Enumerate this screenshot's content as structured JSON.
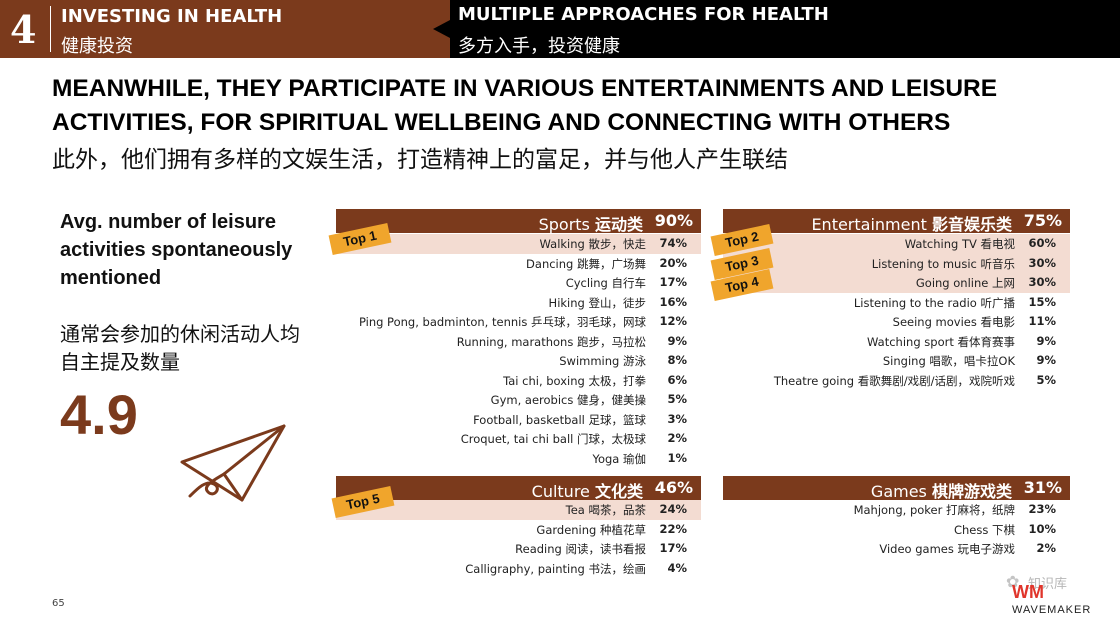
{
  "header": {
    "number": "4",
    "left_en": "INVESTING IN HEALTH",
    "left_cn": "健康投资",
    "right_en": "MULTIPLE APPROACHES FOR HEALTH",
    "right_cn": "多方入手，投资健康"
  },
  "title": {
    "en": "MEANWHILE, THEY PARTICIPATE IN VARIOUS ENTERTAINMENTS AND LEISURE ACTIVITIES, FOR SPIRITUAL WELLBEING AND CONNECTING WITH OTHERS",
    "cn": "此外，他们拥有多样的文娱生活，打造精神上的富足，并与他人产生联结"
  },
  "stat": {
    "label_en": "Avg. number of leisure activities spontaneously mentioned",
    "label_cn": "通常会参加的休闲活动人均自主提及数量",
    "value": "4.9",
    "icon": "paper-plane-icon"
  },
  "panels": {
    "sports": {
      "label_en": "Sports",
      "label_cn": "运动类",
      "pct": "90%",
      "rows": [
        {
          "label": "Walking 散步，快走",
          "pct": "74%"
        },
        {
          "label": "Dancing 跳舞，广场舞",
          "pct": "20%"
        },
        {
          "label": "Cycling 自行车",
          "pct": "17%"
        },
        {
          "label": "Hiking 登山，徒步",
          "pct": "16%"
        },
        {
          "label": "Ping Pong, badminton, tennis 乒乓球，羽毛球，网球",
          "pct": "12%"
        },
        {
          "label": "Running, marathons 跑步，马拉松",
          "pct": "9%"
        },
        {
          "label": "Swimming 游泳",
          "pct": "8%"
        },
        {
          "label": "Tai chi, boxing 太极，打拳",
          "pct": "6%"
        },
        {
          "label": "Gym, aerobics 健身，健美操",
          "pct": "5%"
        },
        {
          "label": "Football, basketball 足球，篮球",
          "pct": "3%"
        },
        {
          "label": "Croquet, tai chi ball 门球，太极球",
          "pct": "2%"
        },
        {
          "label": "Yoga 瑜伽",
          "pct": "1%"
        }
      ]
    },
    "entertainment": {
      "label_en": "Entertainment",
      "label_cn": "影音娱乐类",
      "pct": "75%",
      "rows": [
        {
          "label": "Watching TV 看电视",
          "pct": "60%"
        },
        {
          "label": "Listening to music 听音乐",
          "pct": "30%"
        },
        {
          "label": "Going online 上网",
          "pct": "30%"
        },
        {
          "label": "Listening to the radio 听广播",
          "pct": "15%"
        },
        {
          "label": "Seeing movies 看电影",
          "pct": "11%"
        },
        {
          "label": "Watching sport 看体育赛事",
          "pct": "9%"
        },
        {
          "label": "Singing 唱歌，唱卡拉OK",
          "pct": "9%"
        },
        {
          "label": "Theatre going 看歌舞剧/戏剧/话剧，戏院听戏",
          "pct": "5%"
        }
      ]
    },
    "culture": {
      "label_en": "Culture",
      "label_cn": "文化类",
      "pct": "46%",
      "rows": [
        {
          "label": "Tea 喝茶，品茶",
          "pct": "24%"
        },
        {
          "label": "Gardening 种植花草",
          "pct": "22%"
        },
        {
          "label": "Reading 阅读，读书看报",
          "pct": "17%"
        },
        {
          "label": "Calligraphy, painting 书法，绘画",
          "pct": "4%"
        }
      ]
    },
    "games": {
      "label_en": "Games",
      "label_cn": "棋牌游戏类",
      "pct": "31%",
      "rows": [
        {
          "label": "Mahjong, poker 打麻将，纸牌",
          "pct": "23%"
        },
        {
          "label": "Chess 下棋",
          "pct": "10%"
        },
        {
          "label": "Video games 玩电子游戏",
          "pct": "2%"
        }
      ]
    }
  },
  "badges": {
    "top1": "Top 1",
    "top2": "Top 2",
    "top3": "Top 3",
    "top4": "Top 4",
    "top5": "Top 5"
  },
  "footer": {
    "page_number": "65",
    "brand_logo": "WM",
    "brand_name": "WAVEMAKER",
    "watermark": "知识库"
  },
  "colors": {
    "brand_brown": "#7b3a1c",
    "highlight": "#f3dcd2",
    "badge": "#f0a52c"
  }
}
